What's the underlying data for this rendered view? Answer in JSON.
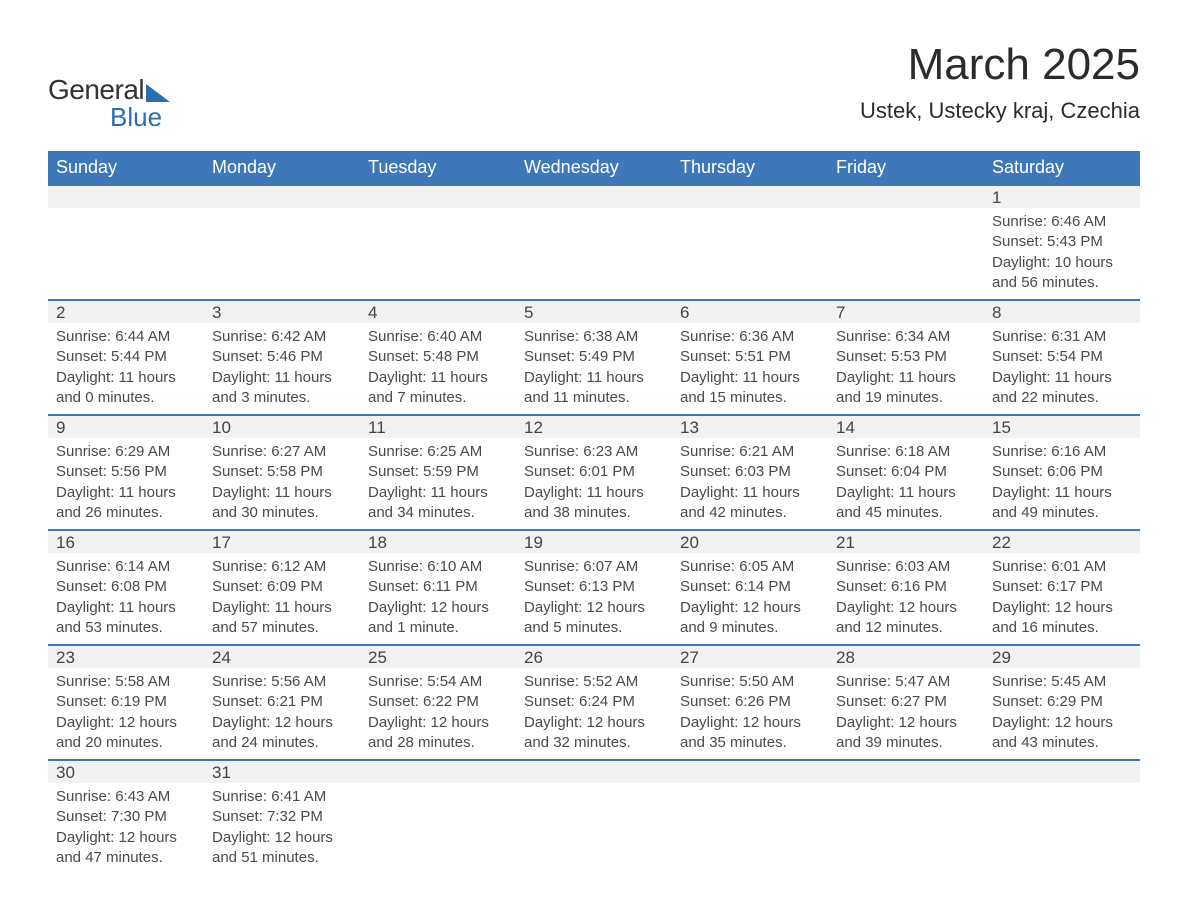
{
  "logo": {
    "text1": "General",
    "text2": "Blue"
  },
  "header": {
    "month_title": "March 2025",
    "location": "Ustek, Ustecky kraj, Czechia"
  },
  "colors": {
    "brand_blue": "#3e78b8",
    "logo_blue": "#2a6db0",
    "header_text": "#ffffff",
    "day_bg": "#f2f2f2",
    "text": "#333333"
  },
  "calendar": {
    "day_headers": [
      "Sunday",
      "Monday",
      "Tuesday",
      "Wednesday",
      "Thursday",
      "Friday",
      "Saturday"
    ],
    "weeks": [
      [
        null,
        null,
        null,
        null,
        null,
        null,
        {
          "day": "1",
          "sunrise": "Sunrise: 6:46 AM",
          "sunset": "Sunset: 5:43 PM",
          "daylight1": "Daylight: 10 hours",
          "daylight2": "and 56 minutes."
        }
      ],
      [
        {
          "day": "2",
          "sunrise": "Sunrise: 6:44 AM",
          "sunset": "Sunset: 5:44 PM",
          "daylight1": "Daylight: 11 hours",
          "daylight2": "and 0 minutes."
        },
        {
          "day": "3",
          "sunrise": "Sunrise: 6:42 AM",
          "sunset": "Sunset: 5:46 PM",
          "daylight1": "Daylight: 11 hours",
          "daylight2": "and 3 minutes."
        },
        {
          "day": "4",
          "sunrise": "Sunrise: 6:40 AM",
          "sunset": "Sunset: 5:48 PM",
          "daylight1": "Daylight: 11 hours",
          "daylight2": "and 7 minutes."
        },
        {
          "day": "5",
          "sunrise": "Sunrise: 6:38 AM",
          "sunset": "Sunset: 5:49 PM",
          "daylight1": "Daylight: 11 hours",
          "daylight2": "and 11 minutes."
        },
        {
          "day": "6",
          "sunrise": "Sunrise: 6:36 AM",
          "sunset": "Sunset: 5:51 PM",
          "daylight1": "Daylight: 11 hours",
          "daylight2": "and 15 minutes."
        },
        {
          "day": "7",
          "sunrise": "Sunrise: 6:34 AM",
          "sunset": "Sunset: 5:53 PM",
          "daylight1": "Daylight: 11 hours",
          "daylight2": "and 19 minutes."
        },
        {
          "day": "8",
          "sunrise": "Sunrise: 6:31 AM",
          "sunset": "Sunset: 5:54 PM",
          "daylight1": "Daylight: 11 hours",
          "daylight2": "and 22 minutes."
        }
      ],
      [
        {
          "day": "9",
          "sunrise": "Sunrise: 6:29 AM",
          "sunset": "Sunset: 5:56 PM",
          "daylight1": "Daylight: 11 hours",
          "daylight2": "and 26 minutes."
        },
        {
          "day": "10",
          "sunrise": "Sunrise: 6:27 AM",
          "sunset": "Sunset: 5:58 PM",
          "daylight1": "Daylight: 11 hours",
          "daylight2": "and 30 minutes."
        },
        {
          "day": "11",
          "sunrise": "Sunrise: 6:25 AM",
          "sunset": "Sunset: 5:59 PM",
          "daylight1": "Daylight: 11 hours",
          "daylight2": "and 34 minutes."
        },
        {
          "day": "12",
          "sunrise": "Sunrise: 6:23 AM",
          "sunset": "Sunset: 6:01 PM",
          "daylight1": "Daylight: 11 hours",
          "daylight2": "and 38 minutes."
        },
        {
          "day": "13",
          "sunrise": "Sunrise: 6:21 AM",
          "sunset": "Sunset: 6:03 PM",
          "daylight1": "Daylight: 11 hours",
          "daylight2": "and 42 minutes."
        },
        {
          "day": "14",
          "sunrise": "Sunrise: 6:18 AM",
          "sunset": "Sunset: 6:04 PM",
          "daylight1": "Daylight: 11 hours",
          "daylight2": "and 45 minutes."
        },
        {
          "day": "15",
          "sunrise": "Sunrise: 6:16 AM",
          "sunset": "Sunset: 6:06 PM",
          "daylight1": "Daylight: 11 hours",
          "daylight2": "and 49 minutes."
        }
      ],
      [
        {
          "day": "16",
          "sunrise": "Sunrise: 6:14 AM",
          "sunset": "Sunset: 6:08 PM",
          "daylight1": "Daylight: 11 hours",
          "daylight2": "and 53 minutes."
        },
        {
          "day": "17",
          "sunrise": "Sunrise: 6:12 AM",
          "sunset": "Sunset: 6:09 PM",
          "daylight1": "Daylight: 11 hours",
          "daylight2": "and 57 minutes."
        },
        {
          "day": "18",
          "sunrise": "Sunrise: 6:10 AM",
          "sunset": "Sunset: 6:11 PM",
          "daylight1": "Daylight: 12 hours",
          "daylight2": "and 1 minute."
        },
        {
          "day": "19",
          "sunrise": "Sunrise: 6:07 AM",
          "sunset": "Sunset: 6:13 PM",
          "daylight1": "Daylight: 12 hours",
          "daylight2": "and 5 minutes."
        },
        {
          "day": "20",
          "sunrise": "Sunrise: 6:05 AM",
          "sunset": "Sunset: 6:14 PM",
          "daylight1": "Daylight: 12 hours",
          "daylight2": "and 9 minutes."
        },
        {
          "day": "21",
          "sunrise": "Sunrise: 6:03 AM",
          "sunset": "Sunset: 6:16 PM",
          "daylight1": "Daylight: 12 hours",
          "daylight2": "and 12 minutes."
        },
        {
          "day": "22",
          "sunrise": "Sunrise: 6:01 AM",
          "sunset": "Sunset: 6:17 PM",
          "daylight1": "Daylight: 12 hours",
          "daylight2": "and 16 minutes."
        }
      ],
      [
        {
          "day": "23",
          "sunrise": "Sunrise: 5:58 AM",
          "sunset": "Sunset: 6:19 PM",
          "daylight1": "Daylight: 12 hours",
          "daylight2": "and 20 minutes."
        },
        {
          "day": "24",
          "sunrise": "Sunrise: 5:56 AM",
          "sunset": "Sunset: 6:21 PM",
          "daylight1": "Daylight: 12 hours",
          "daylight2": "and 24 minutes."
        },
        {
          "day": "25",
          "sunrise": "Sunrise: 5:54 AM",
          "sunset": "Sunset: 6:22 PM",
          "daylight1": "Daylight: 12 hours",
          "daylight2": "and 28 minutes."
        },
        {
          "day": "26",
          "sunrise": "Sunrise: 5:52 AM",
          "sunset": "Sunset: 6:24 PM",
          "daylight1": "Daylight: 12 hours",
          "daylight2": "and 32 minutes."
        },
        {
          "day": "27",
          "sunrise": "Sunrise: 5:50 AM",
          "sunset": "Sunset: 6:26 PM",
          "daylight1": "Daylight: 12 hours",
          "daylight2": "and 35 minutes."
        },
        {
          "day": "28",
          "sunrise": "Sunrise: 5:47 AM",
          "sunset": "Sunset: 6:27 PM",
          "daylight1": "Daylight: 12 hours",
          "daylight2": "and 39 minutes."
        },
        {
          "day": "29",
          "sunrise": "Sunrise: 5:45 AM",
          "sunset": "Sunset: 6:29 PM",
          "daylight1": "Daylight: 12 hours",
          "daylight2": "and 43 minutes."
        }
      ],
      [
        {
          "day": "30",
          "sunrise": "Sunrise: 6:43 AM",
          "sunset": "Sunset: 7:30 PM",
          "daylight1": "Daylight: 12 hours",
          "daylight2": "and 47 minutes."
        },
        {
          "day": "31",
          "sunrise": "Sunrise: 6:41 AM",
          "sunset": "Sunset: 7:32 PM",
          "daylight1": "Daylight: 12 hours",
          "daylight2": "and 51 minutes."
        },
        null,
        null,
        null,
        null,
        null
      ]
    ]
  }
}
